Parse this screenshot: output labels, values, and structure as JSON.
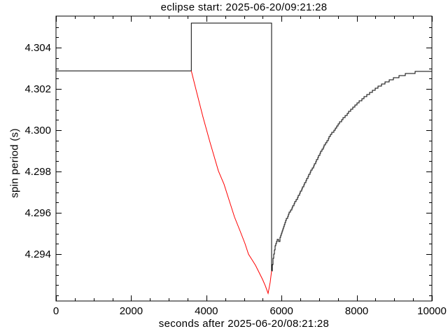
{
  "window": {
    "background": "#ffffff"
  },
  "chart_data": {
    "type": "line",
    "title": "eclipse start: 2025-06-20/09:21:28",
    "xlabel": "seconds after 2025-06-20/08:21:28",
    "ylabel": "spin period (s)",
    "xlim": [
      0,
      10000
    ],
    "ylim": [
      4.29173,
      4.30553
    ],
    "grid": false,
    "legend": "none",
    "axis_color": "#000000",
    "x_major_ticks": [
      {
        "v": 0,
        "label": "0"
      },
      {
        "v": 2000,
        "label": "2000"
      },
      {
        "v": 4000,
        "label": "4000"
      },
      {
        "v": 6000,
        "label": "6000"
      },
      {
        "v": 8000,
        "label": "8000"
      },
      {
        "v": 10000,
        "label": "10000"
      }
    ],
    "x_minor_ticks": [
      500,
      1000,
      1500,
      2500,
      3000,
      3500,
      4500,
      5000,
      5500,
      6500,
      7000,
      7500,
      8500,
      9000,
      9500
    ],
    "y_major_ticks": [
      {
        "v": 4.294,
        "label": "4.294"
      },
      {
        "v": 4.296,
        "label": "4.296"
      },
      {
        "v": 4.298,
        "label": "4.298"
      },
      {
        "v": 4.3,
        "label": "4.300"
      },
      {
        "v": 4.302,
        "label": "4.302"
      },
      {
        "v": 4.304,
        "label": "4.304"
      }
    ],
    "y_minor_ticks": [
      4.292,
      4.2925,
      4.293,
      4.2935,
      4.2945,
      4.295,
      4.2955,
      4.2965,
      4.297,
      4.2975,
      4.2985,
      4.299,
      4.2995,
      4.3005,
      4.301,
      4.3015,
      4.3025,
      4.303,
      4.3035,
      4.3045,
      4.305
    ],
    "series": [
      {
        "name": "pre-eclipse-spin-period",
        "color": "#000000",
        "style": "line",
        "points": [
          [
            0,
            4.30288
          ],
          [
            3600,
            4.30288
          ]
        ]
      },
      {
        "name": "eclipse-window-marker",
        "color": "#000000",
        "style": "line",
        "points": [
          [
            3600,
            4.30288
          ],
          [
            3600,
            4.30519
          ],
          [
            5735,
            4.30519
          ],
          [
            5735,
            4.29319
          ]
        ]
      },
      {
        "name": "eclipse-spin-down",
        "color": "#ff0000",
        "style": "line",
        "points": [
          [
            3600,
            4.30288
          ],
          [
            3724,
            4.30197
          ],
          [
            3911,
            4.30064
          ],
          [
            4097,
            4.29942
          ],
          [
            4320,
            4.29803
          ],
          [
            4469,
            4.29739
          ],
          [
            4618,
            4.29654
          ],
          [
            4749,
            4.2958
          ],
          [
            4897,
            4.29512
          ],
          [
            5028,
            4.29451
          ],
          [
            5121,
            4.294
          ],
          [
            5214,
            4.29373
          ],
          [
            5307,
            4.29346
          ],
          [
            5400,
            4.29312
          ],
          [
            5493,
            4.29278
          ],
          [
            5568,
            4.29247
          ],
          [
            5642,
            4.2921
          ],
          [
            5698,
            4.29264
          ],
          [
            5717,
            4.29292
          ],
          [
            5735,
            4.29319
          ]
        ]
      },
      {
        "name": "post-eclipse-recovery",
        "color": "#000000",
        "style": "stepped",
        "points": [
          [
            5735,
            4.29319
          ],
          [
            5772,
            4.29383
          ],
          [
            5828,
            4.29437
          ],
          [
            5884,
            4.29475
          ],
          [
            5940,
            4.29461
          ],
          [
            5977,
            4.29492
          ],
          [
            6052,
            4.29536
          ],
          [
            6182,
            4.29593
          ],
          [
            6331,
            4.29644
          ],
          [
            6517,
            4.29708
          ],
          [
            6704,
            4.29776
          ],
          [
            6890,
            4.29841
          ],
          [
            7076,
            4.29908
          ],
          [
            7262,
            4.29966
          ],
          [
            7448,
            4.30014
          ],
          [
            7634,
            4.30058
          ],
          [
            7821,
            4.30095
          ],
          [
            8007,
            4.30129
          ],
          [
            8193,
            4.30159
          ],
          [
            8379,
            4.30186
          ],
          [
            8566,
            4.3021
          ],
          [
            8752,
            4.30231
          ],
          [
            8938,
            4.30247
          ],
          [
            9124,
            4.30261
          ],
          [
            9311,
            4.30271
          ],
          [
            9497,
            4.30278
          ],
          [
            9683,
            4.30285
          ],
          [
            9869,
            4.30288
          ],
          [
            10000,
            4.3029
          ]
        ]
      }
    ]
  }
}
